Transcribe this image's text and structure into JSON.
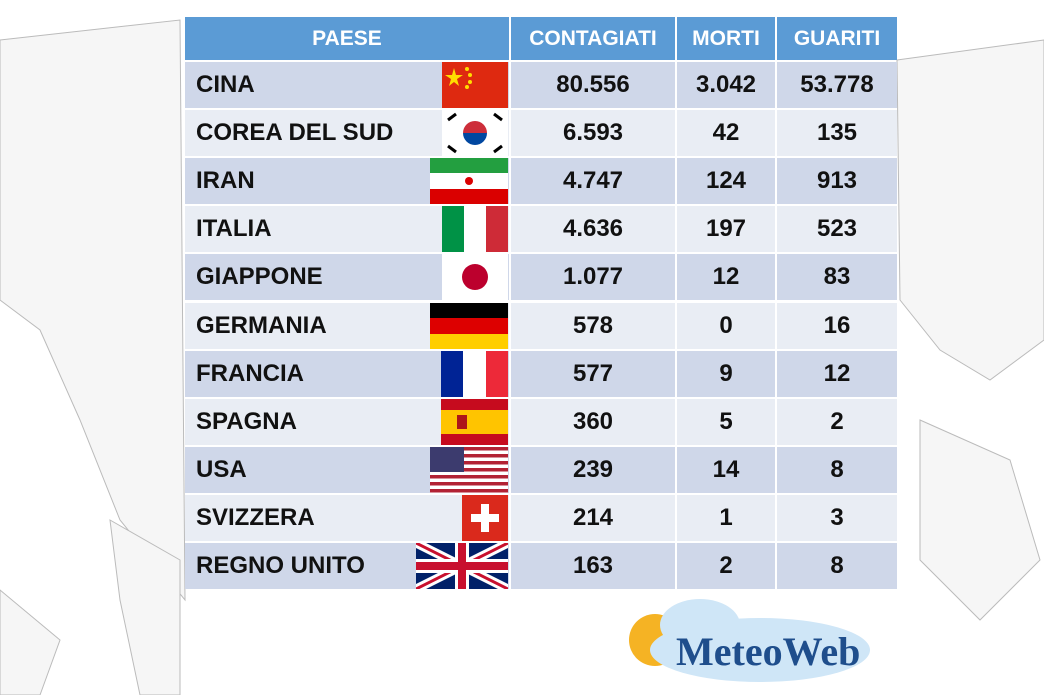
{
  "table": {
    "header": [
      "PAESE",
      "CONTAGIATI",
      "MORTI",
      "GUARITI"
    ],
    "rows": [
      [
        "CINA",
        "80.556",
        "3.042",
        "53.778"
      ],
      [
        "COREA DEL SUD",
        "6.593",
        "42",
        "135"
      ],
      [
        "IRAN",
        "4.747",
        "124",
        "913"
      ],
      [
        "ITALIA",
        "4.636",
        "197",
        "523"
      ],
      [
        "GIAPPONE",
        "1.077",
        "12",
        "83"
      ],
      [
        "GERMANIA",
        "578",
        "0",
        "16"
      ],
      [
        "FRANCIA",
        "577",
        "9",
        "12"
      ],
      [
        "SPAGNA",
        "360",
        "5",
        "2"
      ],
      [
        "USA",
        "239",
        "14",
        "8"
      ],
      [
        "SVIZZERA",
        "214",
        "1",
        "3"
      ],
      [
        "REGNO UNITO",
        "163",
        "2",
        "8"
      ]
    ]
  },
  "logo": {
    "text": "MeteoWeb"
  }
}
